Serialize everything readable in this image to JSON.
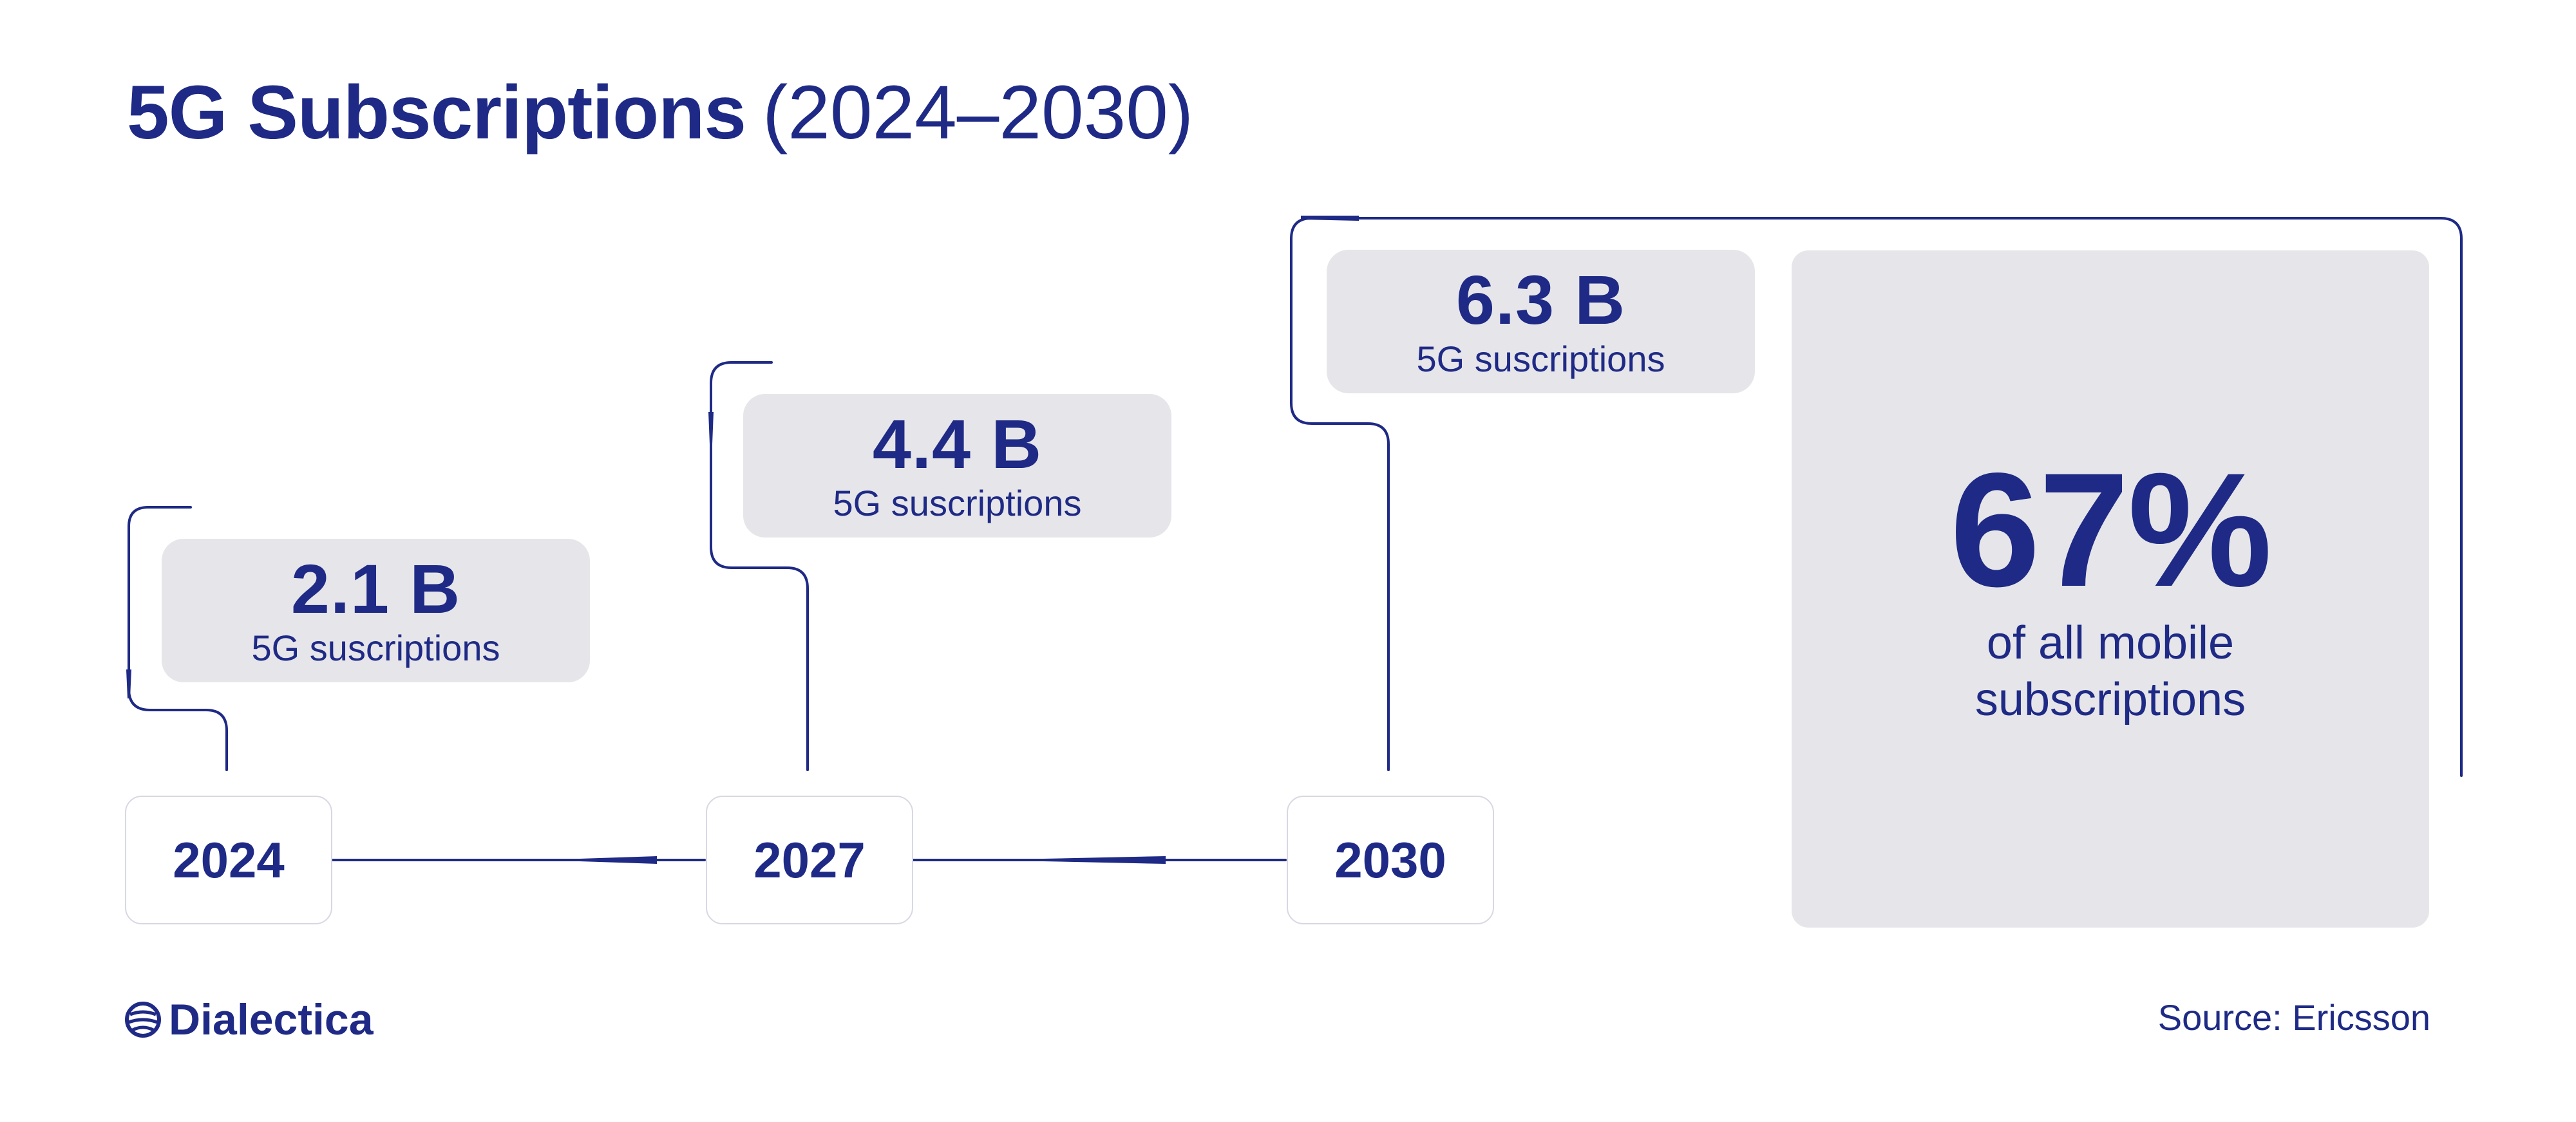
{
  "title": {
    "main": "5G Subscriptions",
    "range": "(2024–2030)"
  },
  "chart_data": {
    "type": "timeline",
    "title": "5G Subscriptions (2024–2030)",
    "categories": [
      "2024",
      "2027",
      "2030"
    ],
    "values": [
      2.1,
      4.4,
      6.3
    ],
    "unit": "B",
    "labels": [
      "2.1 B",
      "4.4 B",
      "6.3 B"
    ],
    "series_label": "5G suscriptions",
    "callout": {
      "value": "67%",
      "label": "of all mobile subscriptions"
    }
  },
  "milestones": [
    {
      "year": "2024",
      "value_label": "2.1 B",
      "caption": "5G suscriptions"
    },
    {
      "year": "2027",
      "value_label": "4.4 B",
      "caption": "5G suscriptions"
    },
    {
      "year": "2030",
      "value_label": "6.3 B",
      "caption": "5G suscriptions"
    }
  ],
  "share": {
    "value": "67%",
    "label": "of all mobile subscriptions"
  },
  "footer": {
    "brand": "Dialectica",
    "logo_icon": "globe-icon",
    "source": "Source: Ericsson"
  },
  "colors": {
    "primary": "#1e2a85",
    "box_fill": "#e6e5e9",
    "background": "#ffffff"
  }
}
